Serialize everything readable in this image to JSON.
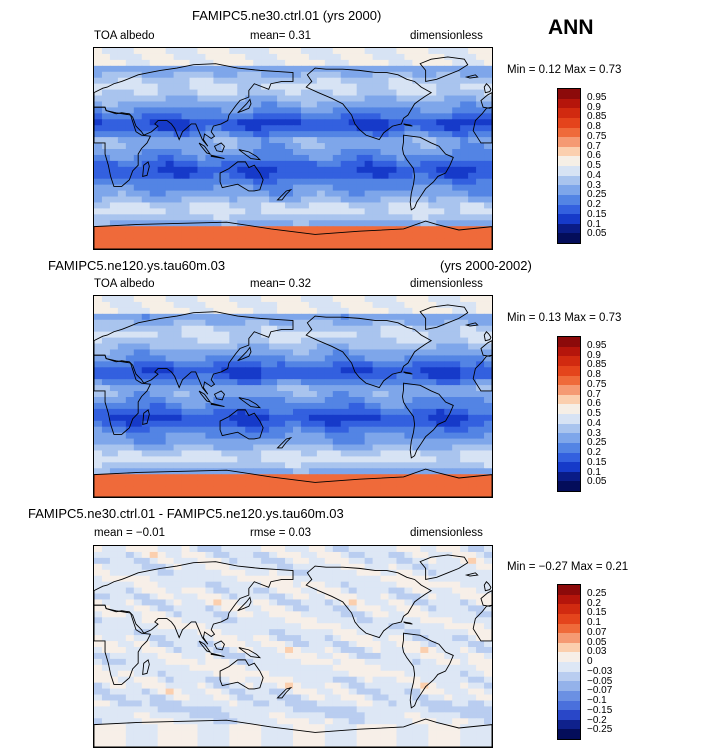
{
  "season": "ANN",
  "panels": [
    {
      "title_left": "FAMIPC5.ne30.ctrl.01 (yrs 2000)",
      "title_right": "",
      "variable": "TOA albedo",
      "stat1": "mean=   0.31",
      "stat2": "",
      "units": "dimensionless",
      "minmax": "Min =   0.12  Max =    0.73",
      "levels": [
        "0.95",
        "0.9",
        "0.85",
        "0.8",
        "0.75",
        "0.7",
        "0.6",
        "0.5",
        "0.4",
        "0.3",
        "0.25",
        "0.2",
        "0.15",
        "0.1",
        "0.05"
      ]
    },
    {
      "title_left": "FAMIPC5.ne120.ys.tau60m.03",
      "title_right": "(yrs 2000-2002)",
      "variable": "TOA albedo",
      "stat1": "mean=   0.32",
      "stat2": "",
      "units": "dimensionless",
      "minmax": "Min =   0.13  Max =    0.73",
      "levels": [
        "0.95",
        "0.9",
        "0.85",
        "0.8",
        "0.75",
        "0.7",
        "0.6",
        "0.5",
        "0.4",
        "0.3",
        "0.25",
        "0.2",
        "0.15",
        "0.1",
        "0.05"
      ]
    },
    {
      "title_left": "FAMIPC5.ne30.ctrl.01 - FAMIPC5.ne120.ys.tau60m.03",
      "title_right": "",
      "variable": "",
      "stat1": "mean =   −0.01",
      "stat2": "rmse =   0.03",
      "units": "dimensionless",
      "minmax": "Min =   −0.27  Max =    0.21",
      "levels": [
        "0.25",
        "0.2",
        "0.15",
        "0.1",
        "0.07",
        "0.05",
        "0.03",
        "0",
        "−0.03",
        "−0.05",
        "−0.07",
        "−0.1",
        "−0.15",
        "−0.2",
        "−0.25"
      ]
    }
  ],
  "colors": {
    "abs_scale": [
      "#8c0a0a",
      "#b5150b",
      "#d12a10",
      "#e4441c",
      "#ef6a3a",
      "#f59a73",
      "#fbcfae",
      "#f6efe6",
      "#d7e3f4",
      "#a9c4ee",
      "#7ea6ea",
      "#5384e4",
      "#3360df",
      "#163ac9",
      "#0a1c86",
      "#040d5a"
    ],
    "diff_scale": [
      "#8c0a0a",
      "#b5150b",
      "#d12a10",
      "#e4441c",
      "#ef6a3a",
      "#f59a73",
      "#fbcfae",
      "#f7efe8",
      "#dde7f5",
      "#b9cdf0",
      "#94b2ea",
      "#6b90e3",
      "#4a70dc",
      "#2947c8",
      "#0f218c",
      "#040d5a"
    ]
  },
  "chart_data": [
    {
      "type": "heatmap",
      "title": "FAMIPC5.ne30.ctrl.01 (yrs 2000)",
      "variable": "TOA albedo",
      "units": "dimensionless",
      "mean": 0.31,
      "min": 0.12,
      "max": 0.73,
      "contour_levels": [
        0.05,
        0.1,
        0.15,
        0.2,
        0.25,
        0.3,
        0.4,
        0.5,
        0.6,
        0.7,
        0.75,
        0.8,
        0.85,
        0.9,
        0.95
      ],
      "zonal_bands_albedo": [
        {
          "lat": 80,
          "value": 0.6
        },
        {
          "lat": 60,
          "value": 0.5
        },
        {
          "lat": 45,
          "value": 0.4
        },
        {
          "lat": 25,
          "value": 0.25
        },
        {
          "lat": 5,
          "value": 0.3
        },
        {
          "lat": -10,
          "value": 0.2
        },
        {
          "lat": -30,
          "value": 0.25
        },
        {
          "lat": -50,
          "value": 0.4
        },
        {
          "lat": -75,
          "value": 0.7
        }
      ]
    },
    {
      "type": "heatmap",
      "title": "FAMIPC5.ne120.ys.tau60m.03",
      "years": "(yrs 2000-2002)",
      "variable": "TOA albedo",
      "units": "dimensionless",
      "mean": 0.32,
      "min": 0.13,
      "max": 0.73,
      "contour_levels": [
        0.05,
        0.1,
        0.15,
        0.2,
        0.25,
        0.3,
        0.4,
        0.5,
        0.6,
        0.7,
        0.75,
        0.8,
        0.85,
        0.9,
        0.95
      ],
      "zonal_bands_albedo": [
        {
          "lat": 80,
          "value": 0.6
        },
        {
          "lat": 60,
          "value": 0.5
        },
        {
          "lat": 45,
          "value": 0.4
        },
        {
          "lat": 25,
          "value": 0.25
        },
        {
          "lat": 5,
          "value": 0.3
        },
        {
          "lat": -10,
          "value": 0.2
        },
        {
          "lat": -30,
          "value": 0.25
        },
        {
          "lat": -50,
          "value": 0.45
        },
        {
          "lat": -75,
          "value": 0.7
        }
      ]
    },
    {
      "type": "heatmap",
      "title": "FAMIPC5.ne30.ctrl.01 - FAMIPC5.ne120.ys.tau60m.03",
      "units": "dimensionless",
      "mean": -0.01,
      "rmse": 0.03,
      "min": -0.27,
      "max": 0.21,
      "contour_levels": [
        -0.25,
        -0.2,
        -0.15,
        -0.1,
        -0.07,
        -0.05,
        -0.03,
        0,
        0.03,
        0.05,
        0.07,
        0.1,
        0.15,
        0.2,
        0.25
      ]
    }
  ]
}
